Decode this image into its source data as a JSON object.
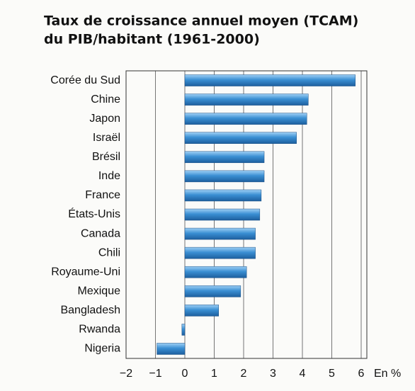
{
  "chart_data": {
    "type": "barh",
    "title": [
      "Taux de croissance annuel moyen (TCAM)",
      "du PIB/habitant (1961-2000)"
    ],
    "categories": [
      "Corée du Sud",
      "Chine",
      "Japon",
      "Israël",
      "Brésil",
      "Inde",
      "France",
      "États-Unis",
      "Canada",
      "Chili",
      "Royaume-Uni",
      "Mexique",
      "Bangladesh",
      "Rwanda",
      "Nigeria"
    ],
    "values": [
      5.8,
      4.2,
      4.15,
      3.8,
      2.7,
      2.7,
      2.6,
      2.55,
      2.4,
      2.4,
      2.1,
      1.9,
      1.15,
      -0.1,
      -0.95
    ],
    "color": "#3a8fd3",
    "xlabel": "En %",
    "xlim": [
      -2,
      6
    ],
    "xticks": [
      {
        "value": -2,
        "label": "−2"
      },
      {
        "value": -1,
        "label": "−1"
      },
      0,
      1,
      2,
      3,
      4,
      5,
      6
    ],
    "grid": true
  }
}
